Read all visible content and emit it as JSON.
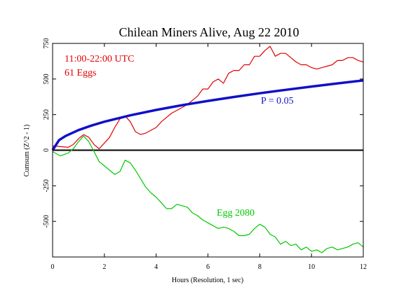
{
  "chart_data": {
    "type": "line",
    "title": "Chilean Miners Alive, Aug 22 2010",
    "xlabel": "Hours (Resolution, 1 sec)",
    "ylabel": "Cumsum (Z^2 - 1)",
    "xlim": [
      0,
      12
    ],
    "ylim": [
      -750,
      750
    ],
    "x_ticks": [
      0,
      2,
      4,
      6,
      8,
      10,
      12
    ],
    "y_ticks": [
      -750,
      -500,
      -250,
      0,
      250,
      500,
      750
    ],
    "y_tick_labels": [
      "",
      "-500",
      "-250",
      "0",
      "250",
      "500",
      "750"
    ],
    "grid": false,
    "zero_line": true,
    "annotations": [
      {
        "text": "11:00-22:00 UTC",
        "color": "#e00000"
      },
      {
        "text": "61 Eggs",
        "color": "#e00000"
      },
      {
        "text": "P = 0.05",
        "color": "#1010c8"
      },
      {
        "text": "Egg 2080",
        "color": "#00c800"
      }
    ],
    "series": [
      {
        "color": "#e00000",
        "x": [
          0,
          0.3,
          0.6,
          0.8,
          1.0,
          1.2,
          1.4,
          1.6,
          1.8,
          2.0,
          2.2,
          2.4,
          2.6,
          2.8,
          3.0,
          3.2,
          3.4,
          3.6,
          3.8,
          4.0,
          4.2,
          4.4,
          4.6,
          4.8,
          5.0,
          5.2,
          5.4,
          5.6,
          5.8,
          6.0,
          6.2,
          6.4,
          6.6,
          6.8,
          7.0,
          7.2,
          7.4,
          7.6,
          7.8,
          8.0,
          8.2,
          8.4,
          8.6,
          8.8,
          9.0,
          9.2,
          9.4,
          9.6,
          9.8,
          10.0,
          10.2,
          10.4,
          10.6,
          10.8,
          11.0,
          11.2,
          11.4,
          11.6,
          11.8,
          12.0
        ],
        "y": [
          30,
          25,
          20,
          40,
          80,
          110,
          90,
          40,
          10,
          50,
          90,
          160,
          220,
          240,
          200,
          130,
          110,
          120,
          140,
          160,
          200,
          230,
          260,
          280,
          300,
          320,
          350,
          380,
          430,
          430,
          480,
          500,
          470,
          540,
          560,
          560,
          600,
          600,
          660,
          660,
          700,
          730,
          660,
          680,
          680,
          650,
          620,
          600,
          600,
          580,
          570,
          580,
          590,
          600,
          630,
          630,
          650,
          650,
          630,
          620
        ]
      },
      {
        "color": "#1010c8",
        "x": [
          0,
          0.25,
          0.5,
          1,
          1.5,
          2,
          3,
          4,
          5,
          6,
          7,
          8,
          9,
          10,
          11,
          12
        ],
        "y": [
          0,
          71,
          100,
          141,
          173,
          200,
          245,
          283,
          316,
          346,
          374,
          400,
          424,
          447,
          469,
          490
        ]
      },
      {
        "color": "#00c800",
        "x": [
          0,
          0.3,
          0.6,
          0.8,
          1.0,
          1.2,
          1.4,
          1.6,
          1.8,
          2.0,
          2.2,
          2.4,
          2.6,
          2.8,
          3.0,
          3.2,
          3.4,
          3.6,
          3.8,
          4.0,
          4.2,
          4.4,
          4.6,
          4.8,
          5.0,
          5.2,
          5.4,
          5.6,
          5.8,
          6.0,
          6.2,
          6.4,
          6.6,
          6.8,
          7.0,
          7.2,
          7.4,
          7.6,
          7.8,
          8.0,
          8.2,
          8.4,
          8.6,
          8.8,
          9.0,
          9.2,
          9.4,
          9.6,
          9.8,
          10.0,
          10.2,
          10.4,
          10.6,
          10.8,
          11.0,
          11.2,
          11.4,
          11.6,
          11.8,
          12.0
        ],
        "y": [
          -10,
          -40,
          -20,
          10,
          60,
          100,
          60,
          -10,
          -80,
          -110,
          -140,
          -170,
          -150,
          -70,
          -90,
          -140,
          -200,
          -260,
          -300,
          -330,
          -370,
          -410,
          -410,
          -380,
          -390,
          -400,
          -440,
          -460,
          -490,
          -510,
          -530,
          -550,
          -540,
          -550,
          -570,
          -600,
          -600,
          -590,
          -550,
          -520,
          -540,
          -590,
          -610,
          -660,
          -640,
          -670,
          -660,
          -700,
          -680,
          -710,
          -700,
          -720,
          -690,
          -680,
          -700,
          -690,
          -680,
          -660,
          -650,
          -680
        ]
      }
    ]
  }
}
